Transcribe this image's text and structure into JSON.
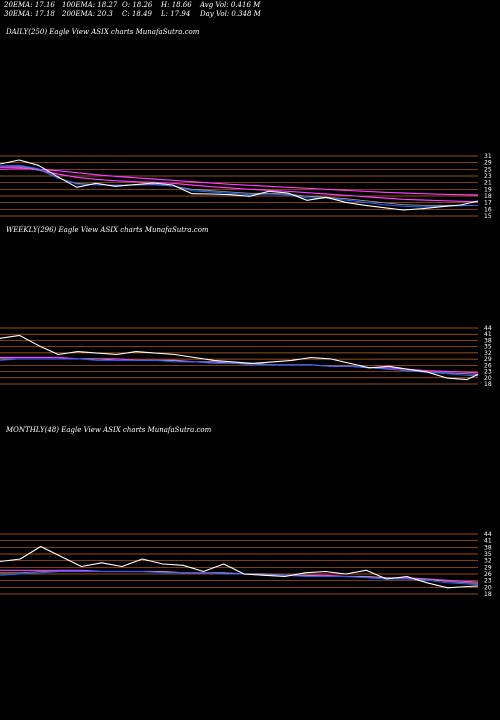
{
  "header": {
    "row1": [
      "20EMA: 17.16",
      "100EMA: 18.27",
      "O: 18.26",
      "H: 18.66",
      "Avg Vol: 0.416  M"
    ],
    "row2": [
      "30EMA: 17.18",
      "200EMA: 20.3",
      "C: 18.49",
      "L: 17.94",
      "Day Vol: 0.348 M"
    ]
  },
  "colors": {
    "background": "#000000",
    "price": "#ffffff",
    "grid": "#c8641e",
    "ema_short": "#1e64ff",
    "ema_long": "#ff3cff",
    "ema_mid": "#a0a0a0"
  },
  "chart_data": [
    {
      "type": "line",
      "title": "DAILY(250) Eagle  View  ASIX  charts MunafaSutra.com",
      "ticks": [
        "31",
        "29",
        "25",
        "23",
        "21",
        "19",
        "18",
        "17",
        "16",
        "15"
      ],
      "ylim": [
        14,
        32
      ],
      "x": [
        0,
        10,
        20,
        30,
        40,
        50,
        60,
        70,
        80,
        90,
        100,
        110,
        120,
        130,
        140,
        150,
        160,
        170,
        180,
        190,
        200,
        210,
        220,
        230,
        240,
        249
      ],
      "series": [
        {
          "name": "Price",
          "values": [
            29.6,
            30.8,
            29.2,
            25.8,
            22.6,
            23.8,
            22.9,
            23.4,
            23.9,
            23.3,
            20.7,
            20.6,
            20.4,
            19.9,
            21.4,
            20.9,
            18.7,
            19.6,
            18.1,
            17.2,
            16.5,
            15.8,
            16.2,
            16.8,
            17.3,
            18.49
          ]
        },
        {
          "values": [
            29.0,
            29.2,
            28.2,
            25.5,
            23.6,
            23.4,
            23.2,
            23.4,
            23.6,
            23.0,
            21.6,
            21.2,
            20.8,
            20.4,
            20.6,
            20.3,
            19.5,
            19.3,
            18.8,
            18.1,
            17.4,
            16.9,
            16.7,
            16.9,
            17.1,
            17.16
          ]
        },
        {
          "values": [
            28.9,
            29.0,
            28.0,
            25.4,
            23.8,
            23.4,
            23.2,
            23.3,
            23.4,
            23.0,
            22.0,
            21.6,
            21.2,
            20.8,
            20.8,
            20.6,
            19.9,
            19.6,
            19.2,
            18.6,
            18.0,
            17.4,
            17.2,
            17.2,
            17.2,
            17.18
          ]
        },
        {
          "values": [
            28.6,
            28.6,
            27.8,
            26.6,
            25.6,
            25.0,
            24.6,
            24.3,
            24.1,
            23.8,
            23.3,
            22.8,
            22.4,
            22.0,
            21.7,
            21.4,
            21.0,
            20.6,
            20.2,
            19.8,
            19.4,
            19.0,
            18.8,
            18.6,
            18.4,
            18.27
          ]
        },
        {
          "values": [
            28.0,
            28.2,
            28.0,
            27.6,
            27.0,
            26.4,
            25.9,
            25.5,
            25.1,
            24.7,
            24.3,
            23.9,
            23.5,
            23.2,
            22.9,
            22.6,
            22.3,
            22.0,
            21.7,
            21.4,
            21.1,
            20.9,
            20.7,
            20.5,
            20.4,
            20.3
          ]
        }
      ]
    },
    {
      "type": "line",
      "title": "WEEKLY(296) Eagle  View  ASIX  charts MunafaSutra.com",
      "ticks": [
        "44",
        "41",
        "38",
        "35",
        "32",
        "29",
        "26",
        "23",
        "20",
        "18"
      ],
      "ylim": [
        12,
        50
      ],
      "x": [
        0,
        12,
        24,
        36,
        48,
        60,
        72,
        84,
        96,
        108,
        120,
        132,
        144,
        156,
        168,
        180,
        192,
        204,
        216,
        228,
        240,
        252,
        264,
        276,
        288,
        295
      ],
      "series": [
        {
          "name": "Price",
          "values": [
            43,
            45,
            38,
            32,
            34,
            33,
            32,
            34,
            33,
            32,
            30,
            28,
            27,
            26,
            27,
            28,
            30,
            29,
            26,
            23,
            24,
            22,
            20,
            16,
            15,
            18.49
          ]
        },
        {
          "values": [
            28,
            29,
            29,
            29,
            29,
            28,
            28,
            28,
            28,
            27,
            27,
            26,
            26,
            25,
            25,
            25,
            25,
            24,
            24,
            23,
            22,
            21,
            20,
            19,
            18,
            17.5
          ]
        },
        {
          "values": [
            29,
            29,
            29,
            29,
            29,
            29,
            28,
            28,
            28,
            28,
            27,
            27,
            26,
            26,
            25,
            25,
            25,
            24,
            24,
            23,
            22,
            21,
            20,
            19.5,
            19,
            18.5
          ]
        },
        {
          "values": [
            30,
            30,
            30,
            30,
            29,
            29,
            29,
            28,
            28,
            28,
            27,
            27,
            26,
            26,
            25,
            25,
            25,
            24,
            24,
            23,
            23,
            22,
            21,
            20.5,
            20,
            19.5
          ]
        }
      ]
    },
    {
      "type": "line",
      "title": "MONTHLY(48) Eagle  View  ASIX  charts MunafaSutra.com",
      "ticks": [
        "44",
        "41",
        "38",
        "35",
        "32",
        "29",
        "26",
        "23",
        "20",
        "18"
      ],
      "ylim": [
        12,
        60
      ],
      "x": [
        0,
        2,
        4,
        6,
        8,
        10,
        12,
        14,
        16,
        18,
        20,
        22,
        24,
        26,
        28,
        30,
        32,
        34,
        36,
        38,
        40,
        42,
        44,
        46,
        47
      ],
      "series": [
        {
          "name": "Price",
          "values": [
            38,
            40,
            50,
            42,
            34,
            37,
            34,
            40,
            36,
            35,
            30,
            36,
            28,
            27,
            26,
            29,
            30,
            28,
            31,
            24,
            26,
            21,
            17,
            18,
            18.49
          ]
        },
        {
          "values": [
            27,
            28,
            29,
            30,
            30,
            30,
            30,
            30,
            29,
            29,
            29,
            28,
            28,
            27,
            27,
            26,
            26,
            26,
            25,
            24,
            24,
            23,
            21,
            20,
            19.5
          ]
        },
        {
          "values": [
            29,
            29,
            30,
            30,
            30,
            30,
            30,
            30,
            30,
            29,
            29,
            29,
            28,
            28,
            27,
            27,
            26,
            26,
            26,
            25,
            24,
            24,
            22,
            21,
            20.5
          ]
        },
        {
          "values": [
            31,
            31,
            31,
            31,
            31,
            30,
            30,
            30,
            30,
            29,
            29,
            29,
            28,
            28,
            27,
            27,
            27,
            26,
            26,
            25,
            25,
            24,
            23,
            22,
            21.5
          ]
        }
      ]
    }
  ]
}
